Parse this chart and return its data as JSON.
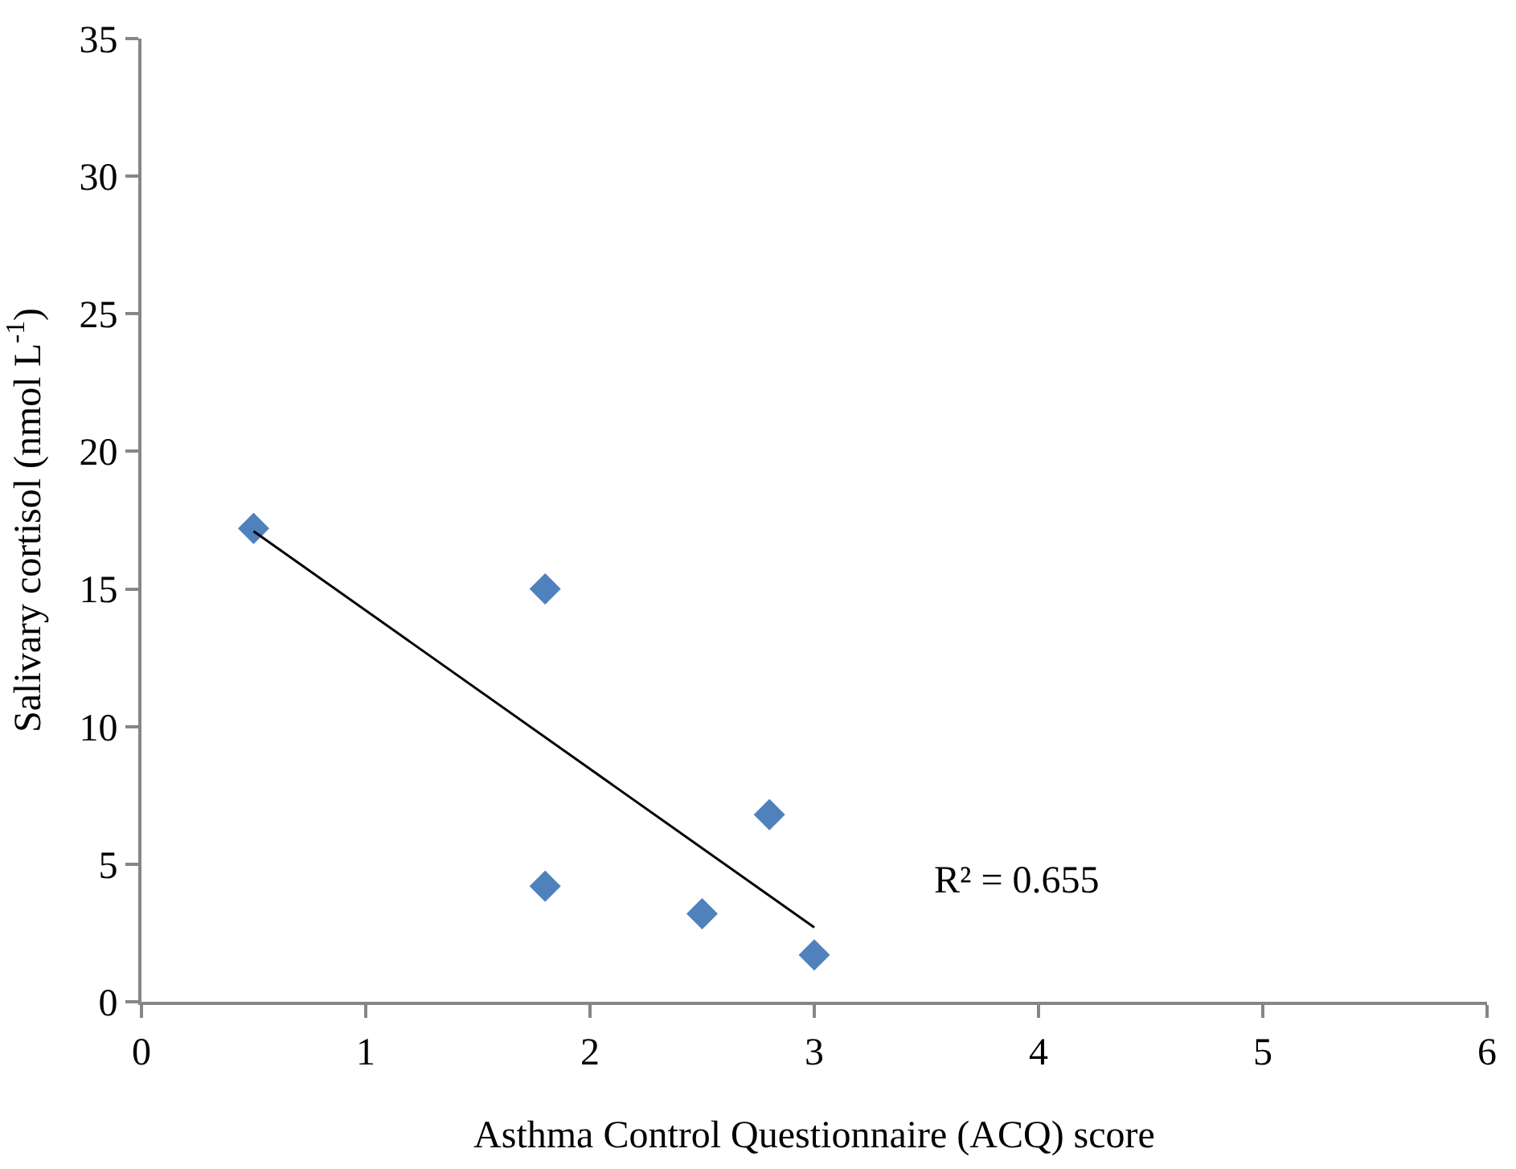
{
  "chart_data": {
    "type": "scatter",
    "xlabel": "Asthma Control Questionnaire (ACQ) score",
    "ylabel": "Salivary cortisol (nmol L$^{-1}$)",
    "xlim": [
      0,
      6
    ],
    "xticks": [
      0,
      1,
      2,
      3,
      4,
      5,
      6
    ],
    "ylim": [
      0,
      35
    ],
    "yticks": [
      0,
      5,
      10,
      15,
      20,
      25,
      30,
      35
    ],
    "grid": false,
    "marker": "diamond",
    "series": [
      {
        "color": "#4f81bd",
        "x": [
          0.5,
          1.8,
          1.8,
          2.5,
          2.8,
          3.0
        ],
        "values": [
          17.2,
          15.0,
          4.2,
          3.2,
          6.8,
          1.7
        ]
      },
      {
        "type": "line",
        "color": "#000000",
        "marker": "none",
        "line_style": "solid",
        "x": [
          0.5,
          3.0
        ],
        "values": [
          17.1,
          2.7
        ]
      }
    ],
    "annotations": [
      "R² = 0.655"
    ]
  }
}
